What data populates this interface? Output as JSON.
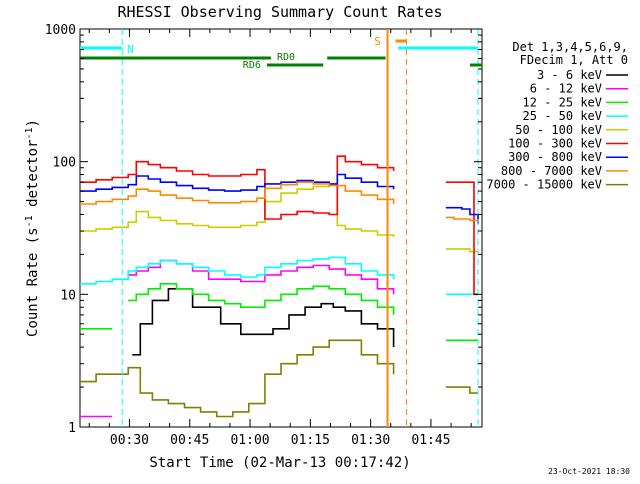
{
  "colors": {
    "axes": "#000000",
    "band_3_6": "#000000",
    "band_6_12": "#ff00ff",
    "band_12_25": "#00ee00",
    "band_25_50": "#00ffff",
    "band_50_100": "#cccc00",
    "band_100_300": "#ff0000",
    "band_300_800": "#0000ff",
    "band_800_7000": "#ff8800",
    "band_7000_15000": "#808000",
    "night_marker": "#00ffff",
    "saa_marker": "#ff8800",
    "decimation": "#008000"
  },
  "chart_data": {
    "type": "line",
    "title": "RHESSI Observing Summary Count Rates",
    "xlabel": "Start Time (02-Mar-13 00:17:42)",
    "ylabel": "Count Rate (s",
    "ylabel_sup": "-1",
    "ylabel_tail": " detector",
    "ylabel_close": ")",
    "yscale": "log",
    "xlim_minutes_from_start": [
      0,
      100
    ],
    "ylim": [
      1,
      1000
    ],
    "x_ticks": [
      "00:30",
      "00:45",
      "01:00",
      "01:15",
      "01:30",
      "01:45"
    ],
    "x_tick_minutes": [
      12.3,
      27.3,
      42.3,
      57.3,
      72.3,
      87.3
    ],
    "y_ticks": [
      "1",
      "10",
      "100",
      "1000"
    ],
    "y_tick_values": [
      1,
      10,
      100,
      1000
    ],
    "legend": {
      "header": [
        "Det 1,3,4,5,6,9,",
        "FDecim 1, Att 0"
      ],
      "position": "right"
    },
    "annotations": {
      "night_label": "N",
      "saa_label": "S",
      "rd0_label": "RD0",
      "rd6_label": "RD6",
      "timestamp": "23-Oct-2021 18:30"
    },
    "series": [
      {
        "name": "3 - 6 keV",
        "color_key": "band_3_6",
        "x": [
          0,
          8,
          10,
          13,
          15,
          18,
          22,
          28,
          35,
          40,
          44,
          48,
          52,
          56,
          60,
          63,
          66,
          70,
          74,
          78,
          94,
          97
        ],
        "y": [
          null,
          null,
          null,
          3.5,
          6,
          9,
          11,
          8,
          6,
          5,
          5,
          5.5,
          7,
          8,
          8.5,
          8,
          7.5,
          6,
          5.5,
          4,
          null,
          null
        ]
      },
      {
        "name": "6 - 12 keV",
        "color_key": "band_6_12",
        "x": [
          0,
          4,
          8,
          10,
          12,
          14,
          17,
          20,
          24,
          28,
          32,
          36,
          40,
          44,
          46,
          50,
          54,
          58,
          62,
          66,
          70,
          74,
          78
        ],
        "y": [
          1.2,
          1.2,
          1.2,
          null,
          14,
          15,
          16,
          18,
          17,
          15,
          13,
          13,
          12.5,
          12.5,
          14,
          15,
          16,
          16.5,
          15.5,
          14,
          13,
          11,
          10
        ]
      },
      {
        "name": "12 - 25 keV",
        "color_key": "band_12_25",
        "x": [
          0,
          4,
          8,
          10,
          12,
          14,
          17,
          20,
          24,
          28,
          32,
          36,
          40,
          44,
          46,
          50,
          54,
          58,
          62,
          66,
          70,
          74,
          78,
          80,
          91,
          93,
          95,
          97,
          99
        ],
        "y": [
          5.5,
          5.5,
          5.5,
          null,
          9,
          10,
          11,
          12,
          11,
          10,
          9,
          8.5,
          8,
          8,
          9,
          10,
          11,
          11.5,
          11,
          10,
          9,
          8,
          7,
          null,
          4.5,
          4.5,
          4.5,
          4.5,
          4.5
        ]
      },
      {
        "name": "25 - 50 keV",
        "color_key": "band_25_50",
        "x": [
          0,
          4,
          8,
          12,
          14,
          17,
          20,
          24,
          28,
          32,
          36,
          40,
          44,
          46,
          50,
          54,
          58,
          62,
          66,
          70,
          74,
          78,
          80,
          91,
          93,
          95,
          97,
          99
        ],
        "y": [
          12,
          12.5,
          13,
          15,
          16,
          17,
          18,
          17,
          16,
          15,
          14,
          13.5,
          14,
          16,
          17,
          18,
          18.5,
          19,
          17,
          15,
          14,
          13,
          null,
          10,
          10,
          10,
          10,
          10
        ]
      },
      {
        "name": "50 - 100 keV",
        "color_key": "band_50_100",
        "x": [
          0,
          4,
          8,
          12,
          14,
          17,
          20,
          24,
          28,
          32,
          36,
          40,
          44,
          46,
          50,
          54,
          58,
          62,
          64,
          66,
          70,
          74,
          78,
          80,
          91,
          93,
          95,
          97,
          99
        ],
        "y": [
          30,
          31,
          32,
          35,
          42,
          38,
          36,
          34,
          33,
          32,
          32,
          33,
          35,
          50,
          58,
          62,
          65,
          67,
          33,
          31,
          30,
          28,
          27,
          null,
          22,
          22,
          22,
          21,
          21
        ]
      },
      {
        "name": "100 - 300 keV",
        "color_key": "band_100_300",
        "x": [
          0,
          4,
          8,
          12,
          14,
          17,
          20,
          24,
          28,
          32,
          36,
          40,
          44,
          46,
          50,
          54,
          58,
          62,
          64,
          66,
          70,
          74,
          78,
          80,
          91,
          93,
          95,
          97,
          98,
          99
        ],
        "y": [
          70,
          73,
          76,
          80,
          100,
          95,
          90,
          85,
          80,
          78,
          78,
          80,
          87,
          37,
          40,
          42,
          41,
          40,
          110,
          100,
          95,
          90,
          85,
          null,
          70,
          70,
          70,
          70,
          10,
          10
        ]
      },
      {
        "name": "300 - 800 keV",
        "color_key": "band_300_800",
        "x": [
          0,
          4,
          8,
          12,
          14,
          17,
          20,
          24,
          28,
          32,
          36,
          40,
          44,
          46,
          50,
          54,
          58,
          62,
          64,
          66,
          70,
          74,
          78,
          80,
          91,
          93,
          95,
          97,
          99
        ],
        "y": [
          60,
          62,
          64,
          67,
          78,
          74,
          70,
          66,
          63,
          61,
          60,
          61,
          65,
          68,
          70,
          72,
          70,
          68,
          80,
          75,
          70,
          65,
          62,
          null,
          45,
          45,
          44,
          40,
          34
        ]
      },
      {
        "name": "800 - 7000 keV",
        "color_key": "band_800_7000",
        "x": [
          0,
          4,
          8,
          12,
          14,
          17,
          20,
          24,
          28,
          32,
          36,
          40,
          44,
          46,
          50,
          54,
          58,
          62,
          64,
          66,
          70,
          74,
          78,
          80,
          91,
          93,
          95,
          97,
          99
        ],
        "y": [
          48,
          50,
          52,
          55,
          62,
          60,
          56,
          53,
          51,
          49,
          49,
          50,
          53,
          63,
          67,
          70,
          68,
          66,
          66,
          60,
          56,
          52,
          48,
          null,
          38,
          37,
          37,
          36,
          36
        ]
      },
      {
        "name": "7000 - 15000 keV",
        "color_key": "band_7000_15000",
        "x": [
          0,
          4,
          8,
          12,
          15,
          18,
          22,
          26,
          30,
          34,
          38,
          42,
          46,
          50,
          54,
          58,
          62,
          66,
          70,
          74,
          78,
          80,
          91,
          93,
          95,
          97,
          99
        ],
        "y": [
          2.2,
          2.5,
          2.5,
          2.8,
          1.8,
          1.6,
          1.5,
          1.4,
          1.3,
          1.2,
          1.3,
          1.5,
          2.5,
          3,
          3.5,
          4,
          4.5,
          4.5,
          3.5,
          3,
          2.5,
          null,
          2,
          2,
          2,
          1.8,
          1.8
        ]
      }
    ]
  }
}
